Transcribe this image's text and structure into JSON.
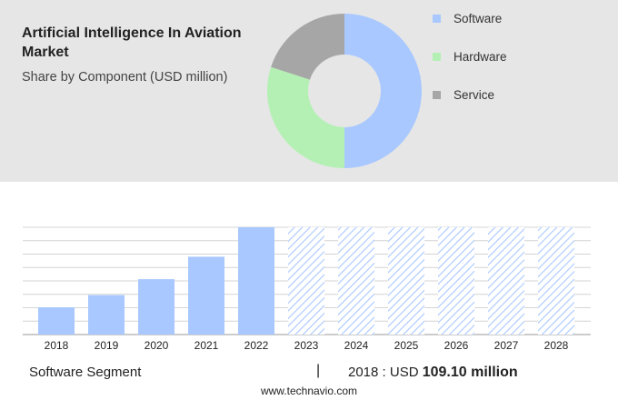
{
  "chart_data": [
    {
      "type": "pie",
      "title": "Artificial Intelligence In Aviation Market",
      "subtitle": "Share by Component (USD million)",
      "categories": [
        "Software",
        "Hardware",
        "Service"
      ],
      "values": [
        50,
        30,
        20
      ],
      "colors": [
        "#a8c8ff",
        "#b4f0b4",
        "#a6a6a6"
      ],
      "legend": "right"
    },
    {
      "type": "bar",
      "categories": [
        "2018",
        "2019",
        "2020",
        "2021",
        "2022",
        "2023",
        "2024",
        "2025",
        "2026",
        "2027",
        "2028"
      ],
      "values": [
        109.1,
        158,
        222,
        312,
        430,
        null,
        null,
        null,
        null,
        null,
        null
      ],
      "forecast_categories": [
        "2023",
        "2024",
        "2025",
        "2026",
        "2027",
        "2028"
      ],
      "ylim": [
        0,
        430
      ],
      "grid": true,
      "color": "#a8c8ff",
      "forecast_color": "#a8c8ff"
    }
  ],
  "footer": {
    "segment_label": "Software Segment",
    "separator": "|",
    "year_label": "2018 : USD",
    "value_label": "109.10 million"
  },
  "source": "www.technavio.com"
}
